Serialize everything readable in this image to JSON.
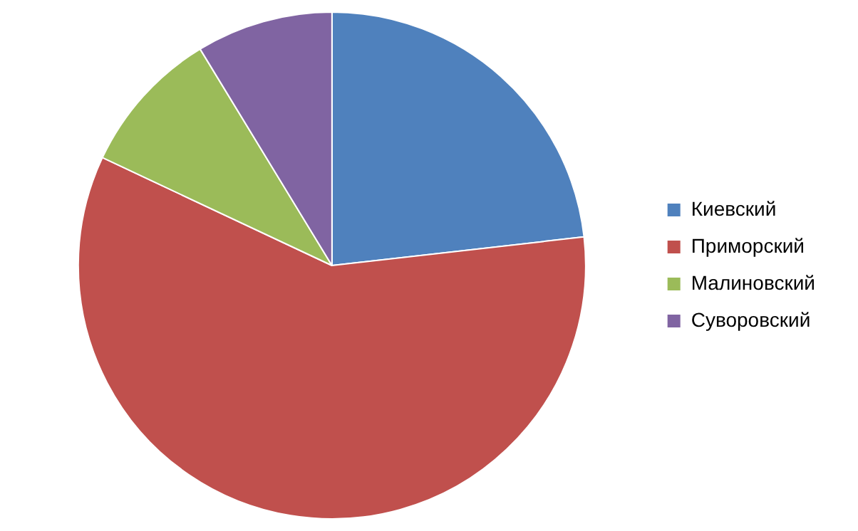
{
  "chart_data": {
    "type": "pie",
    "categories": [
      "Киевский",
      "Приморский",
      "Малиновский",
      "Суворовский"
    ],
    "values": [
      23.2,
      58.8,
      9.3,
      8.7
    ],
    "colors": [
      "#4f81bd",
      "#c0504d",
      "#9bbb59",
      "#8064a2"
    ],
    "legend": "right"
  }
}
